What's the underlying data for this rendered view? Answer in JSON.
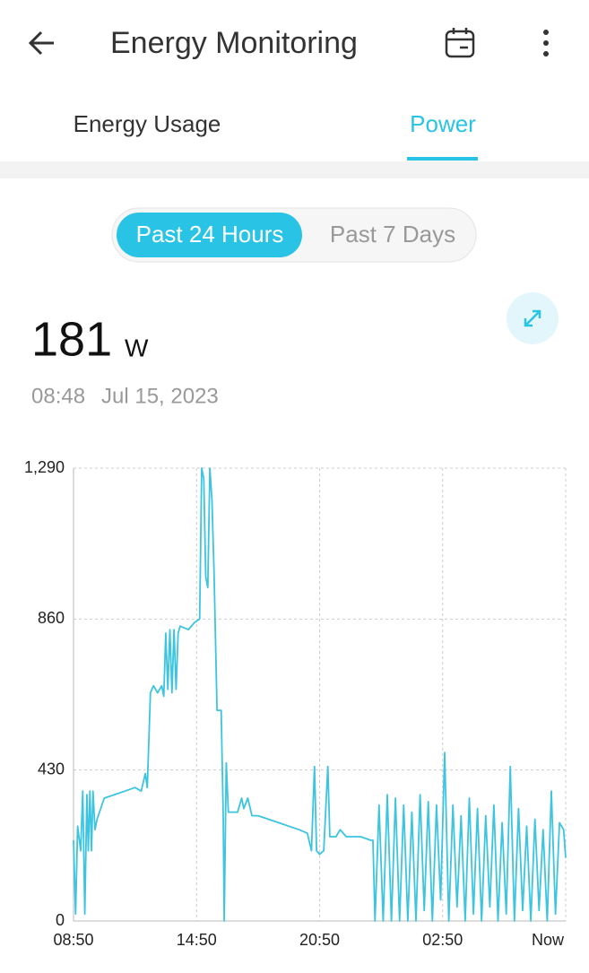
{
  "header": {
    "title": "Energy Monitoring"
  },
  "tabs": [
    "Energy Usage",
    "Power"
  ],
  "range_toggle": [
    "Past 24 Hours",
    "Past 7 Days"
  ],
  "reading": {
    "value": "181",
    "unit": "W",
    "time": "08:48",
    "date": "Jul 15, 2023"
  },
  "chart_data": {
    "type": "line",
    "color": "#3cc4e0",
    "grid": true,
    "x": [
      0.0,
      0.1,
      0.2,
      0.35,
      0.45,
      0.55,
      0.65,
      0.72,
      0.8,
      0.88,
      0.95,
      1.05,
      1.15,
      1.5,
      2.0,
      2.5,
      3.0,
      3.3,
      3.5,
      3.6,
      3.75,
      3.9,
      4.1,
      4.3,
      4.4,
      4.5,
      4.6,
      4.7,
      4.8,
      4.9,
      5.0,
      5.1,
      5.2,
      5.6,
      5.9,
      6.15,
      6.25,
      6.35,
      6.45,
      6.55,
      6.65,
      6.75,
      6.85,
      7.0,
      7.2,
      7.3,
      7.35,
      7.45,
      7.55,
      8.0,
      8.2,
      8.3,
      8.5,
      8.7,
      9.0,
      9.5,
      10.0,
      10.5,
      11.0,
      11.4,
      11.6,
      11.75,
      11.85,
      12.0,
      12.2,
      12.4,
      12.5,
      12.8,
      13.0,
      13.3,
      14.0,
      14.5,
      14.6,
      14.7,
      14.9,
      15.1,
      15.3,
      15.5,
      15.7,
      15.9,
      16.1,
      16.3,
      16.5,
      16.7,
      16.9,
      17.1,
      17.3,
      17.5,
      17.7,
      17.9,
      18.1,
      18.3,
      18.5,
      18.7,
      18.9,
      19.1,
      19.3,
      19.5,
      19.7,
      19.9,
      20.1,
      20.3,
      20.5,
      20.7,
      20.9,
      21.1,
      21.3,
      21.5,
      21.7,
      21.9,
      22.1,
      22.3,
      22.5,
      22.7,
      22.9,
      23.1,
      23.3,
      23.5,
      23.7,
      23.9,
      24.0
    ],
    "values": [
      230,
      20,
      270,
      200,
      370,
      20,
      360,
      200,
      370,
      200,
      370,
      260,
      290,
      350,
      360,
      370,
      380,
      370,
      420,
      380,
      650,
      670,
      650,
      670,
      640,
      820,
      660,
      830,
      650,
      830,
      660,
      820,
      840,
      830,
      850,
      860,
      1290,
      1260,
      980,
      950,
      1290,
      1200,
      1000,
      600,
      600,
      300,
      0,
      450,
      310,
      310,
      350,
      320,
      350,
      300,
      300,
      290,
      280,
      270,
      260,
      250,
      200,
      440,
      200,
      190,
      200,
      440,
      240,
      240,
      260,
      240,
      240,
      230,
      230,
      0,
      330,
      0,
      360,
      0,
      350,
      0,
      330,
      0,
      310,
      0,
      360,
      30,
      340,
      0,
      330,
      60,
      480,
      0,
      330,
      40,
      300,
      0,
      350,
      20,
      320,
      0,
      300,
      40,
      330,
      0,
      280,
      20,
      440,
      0,
      320,
      30,
      270,
      0,
      290,
      30,
      260,
      0,
      370,
      20,
      280,
      260,
      180
    ],
    "xlim": [
      0,
      24
    ],
    "xticks": [
      {
        "value": 0,
        "label": "08:50"
      },
      {
        "value": 6,
        "label": "14:50"
      },
      {
        "value": 12,
        "label": "20:50"
      },
      {
        "value": 18,
        "label": "02:50"
      },
      {
        "value": 24,
        "label": "Now"
      }
    ],
    "ylim": [
      0,
      1290
    ],
    "yticks": [
      0,
      430,
      860,
      {
        "value": 1290,
        "label": "1,290"
      }
    ]
  }
}
